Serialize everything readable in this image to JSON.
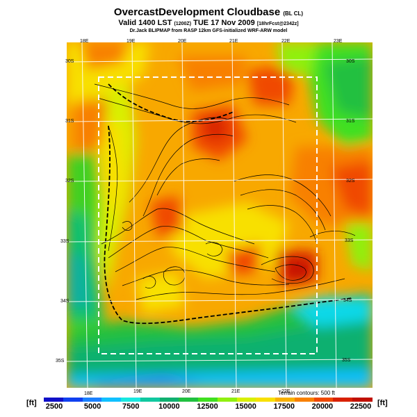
{
  "header": {
    "title": "OvercastDevelopment Cloudbase",
    "title_tag": "(BL CL)",
    "valid_line": "Valid 1400 LST",
    "valid_code": "(1200Z)",
    "valid_date": "TUE 17 Nov 2009",
    "valid_forecast": "[18hrFcst@2342z]",
    "credit_line": "Dr.Jack BLIPMAP from RASP 12km GFS-initialized WRF-ARW model"
  },
  "map": {
    "top_lon_labels": [
      "18E",
      "19E",
      "20E",
      "21E",
      "22E",
      "23E"
    ],
    "bottom_lon_labels": [
      "18E",
      "19E",
      "20E",
      "21E",
      "22E"
    ],
    "left_lat_labels": [
      "30S",
      "31S",
      "32S",
      "33S",
      "34S",
      "35S"
    ],
    "right_lat_labels": [
      "30S",
      "31S",
      "32S",
      "33S",
      "34S",
      "35S"
    ],
    "contour_note": "Terrain contours: 500 ft"
  },
  "colorbar": {
    "unit_left": "[ft]",
    "unit_right": "[ft]",
    "ticks": [
      "2500",
      "5000",
      "7500",
      "10000",
      "12500",
      "15000",
      "17500",
      "20000",
      "22500"
    ],
    "colors": [
      "#1010c8",
      "#1040f0",
      "#1a80ff",
      "#10c0ff",
      "#18e8e0",
      "#10c8a0",
      "#10b070",
      "#20c040",
      "#40e020",
      "#90f010",
      "#d8f000",
      "#f8e000",
      "#f8b000",
      "#f88000",
      "#f04800",
      "#d82000",
      "#c01000"
    ]
  }
}
